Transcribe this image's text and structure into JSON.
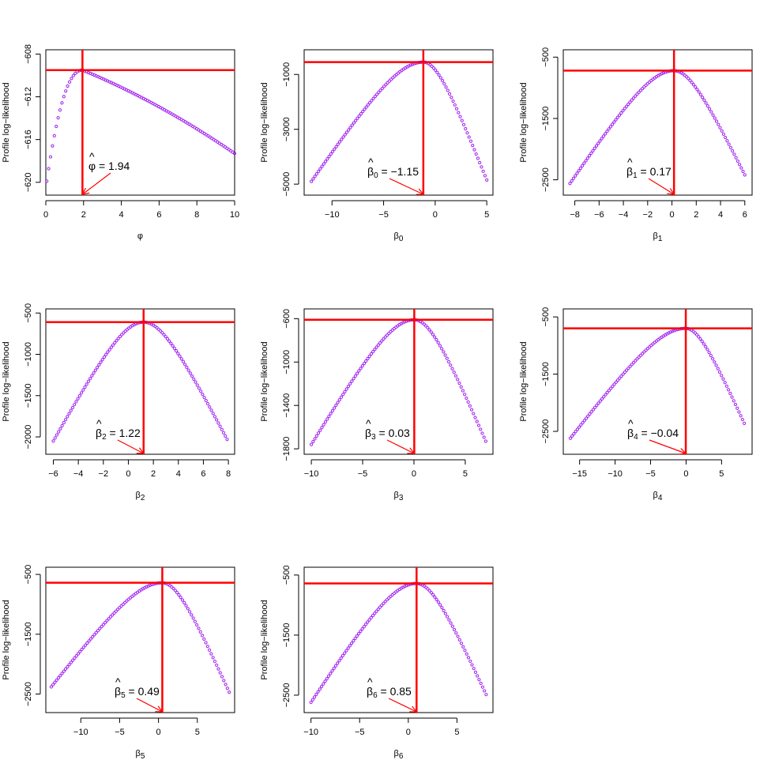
{
  "chart_data": [
    {
      "type": "scatter",
      "param": "phi",
      "xlabel_symbol": "φ",
      "xlabel_sub": "",
      "ylabel": "Profile log−likelihood",
      "xlim": [
        0,
        10
      ],
      "ylim": [
        -621.2,
        -607.6
      ],
      "xticks": [
        0,
        2,
        4,
        6,
        8,
        10
      ],
      "xtick_labels": [
        "0",
        "2",
        "4",
        "6",
        "8",
        "10"
      ],
      "yticks": [
        -620,
        -616,
        -612,
        -608
      ],
      "ytick_labels": [
        "−620",
        "−616",
        "−612",
        "−608"
      ],
      "estimate": 1.94,
      "estimate_label_symbol": "φ",
      "estimate_label_sub": "",
      "estimate_label_value": "= 1.94",
      "max_loglik": -609.5,
      "curve": {
        "kind": "phi",
        "x_start": 0.05,
        "x_end": 10,
        "n": 100,
        "y_end": -617.3,
        "y_start": -619.9
      },
      "line_color": "#ff0000",
      "point_color": "#a020f0"
    },
    {
      "type": "scatter",
      "param": "beta0",
      "xlabel_symbol": "β",
      "xlabel_sub": "0",
      "ylabel": "Profile log−likelihood",
      "xlim": [
        -12.7,
        5.6
      ],
      "ylim": [
        -5400,
        -100
      ],
      "xticks": [
        -10,
        -5,
        0,
        5
      ],
      "xtick_labels": [
        "−10",
        "−5",
        "0",
        "5"
      ],
      "yticks": [
        -5000,
        -3000,
        -1000
      ],
      "ytick_labels": [
        "−5000",
        "−3000",
        "−1000"
      ],
      "estimate": -1.15,
      "estimate_label_symbol": "β",
      "estimate_label_sub": "0",
      "estimate_label_value": "= −1.15",
      "max_loglik": -550,
      "curve": {
        "kind": "quad",
        "x_start": -12,
        "x_end": 5,
        "n": 100,
        "y_start": -4900,
        "y_end": -4850
      },
      "line_color": "#ff0000",
      "point_color": "#a020f0"
    },
    {
      "type": "scatter",
      "param": "beta1",
      "xlabel_symbol": "β",
      "xlabel_sub": "1",
      "ylabel": "Profile log−likelihood",
      "xlim": [
        -8.95,
        6.6
      ],
      "ylim": [
        -2750,
        -380
      ],
      "xticks": [
        -8,
        -6,
        -4,
        -2,
        0,
        2,
        4,
        6
      ],
      "xtick_labels": [
        "−8",
        "−6",
        "−4",
        "−2",
        "0",
        "2",
        "4",
        "6"
      ],
      "yticks": [
        -2500,
        -1500,
        -500
      ],
      "ytick_labels": [
        "−2500",
        "−1500",
        "−500"
      ],
      "estimate": 0.17,
      "estimate_label_symbol": "β",
      "estimate_label_sub": "1",
      "estimate_label_value": "= 0.17",
      "max_loglik": -720,
      "curve": {
        "kind": "quad",
        "x_start": -8.4,
        "x_end": 6,
        "n": 100,
        "y_start": -2560,
        "y_end": -2420
      },
      "line_color": "#ff0000",
      "point_color": "#a020f0"
    },
    {
      "type": "scatter",
      "param": "beta2",
      "xlabel_symbol": "β",
      "xlabel_sub": "2",
      "ylabel": "Profile log−likelihood",
      "xlim": [
        -6.6,
        8.5
      ],
      "ylim": [
        -2210,
        -450
      ],
      "xticks": [
        -6,
        -4,
        -2,
        0,
        2,
        4,
        6,
        8
      ],
      "xtick_labels": [
        "−6",
        "−4",
        "−2",
        "0",
        "2",
        "4",
        "6",
        "8"
      ],
      "yticks": [
        -2000,
        -1500,
        -1000,
        -500
      ],
      "ytick_labels": [
        "−2000",
        "−1500",
        "−1000",
        "−500"
      ],
      "estimate": 1.22,
      "estimate_label_symbol": "β",
      "estimate_label_sub": "2",
      "estimate_label_value": "= 1.22",
      "max_loglik": -610,
      "curve": {
        "kind": "quad",
        "x_start": -6,
        "x_end": 7.9,
        "n": 100,
        "y_start": -2050,
        "y_end": -2030
      },
      "line_color": "#ff0000",
      "point_color": "#a020f0"
    },
    {
      "type": "scatter",
      "param": "beta3",
      "xlabel_symbol": "β",
      "xlabel_sub": "3",
      "ylabel": "Profile log−likelihood",
      "xlim": [
        -10.7,
        7.7
      ],
      "ylim": [
        -1850,
        -510
      ],
      "xticks": [
        -10,
        -5,
        0,
        5
      ],
      "xtick_labels": [
        "−10",
        "−5",
        "0",
        "5"
      ],
      "yticks": [
        -1800,
        -1400,
        -1000,
        -600
      ],
      "ytick_labels": [
        "−1800",
        "−1400",
        "−1000",
        "−600"
      ],
      "estimate": 0.03,
      "estimate_label_symbol": "β",
      "estimate_label_sub": "3",
      "estimate_label_value": "= 0.03",
      "max_loglik": -610,
      "curve": {
        "kind": "quad",
        "x_start": -10,
        "x_end": 7,
        "n": 100,
        "y_start": -1760,
        "y_end": -1730
      },
      "line_color": "#ff0000",
      "point_color": "#a020f0"
    },
    {
      "type": "scatter",
      "param": "beta4",
      "xlabel_symbol": "β",
      "xlabel_sub": "4",
      "ylabel": "Profile log−likelihood",
      "xlim": [
        -17.3,
        9.3
      ],
      "ylim": [
        -2900,
        -360
      ],
      "xticks": [
        -15,
        -10,
        -5,
        0,
        5
      ],
      "xtick_labels": [
        "−15",
        "−10",
        "−5",
        "0",
        "5"
      ],
      "yticks": [
        -2500,
        -1500,
        -500
      ],
      "ytick_labels": [
        "−2500",
        "−1500",
        "−500"
      ],
      "estimate": -0.04,
      "estimate_label_symbol": "β",
      "estimate_label_sub": "4",
      "estimate_label_value": "= −0.04",
      "max_loglik": -700,
      "curve": {
        "kind": "quad",
        "x_start": -16.3,
        "x_end": 8.2,
        "n": 100,
        "y_start": -2620,
        "y_end": -2360
      },
      "line_color": "#ff0000",
      "point_color": "#a020f0"
    },
    {
      "type": "scatter",
      "param": "beta5",
      "xlabel_symbol": "β",
      "xlabel_sub": "5",
      "ylabel": "Profile log−likelihood",
      "xlim": [
        -14.5,
        9.8
      ],
      "ylim": [
        -2810,
        -380
      ],
      "xticks": [
        -10,
        -5,
        0,
        5
      ],
      "xtick_labels": [
        "−10",
        "−5",
        "0",
        "5"
      ],
      "yticks": [
        -2500,
        -1500,
        -500
      ],
      "ytick_labels": [
        "−2500",
        "−1500",
        "−500"
      ],
      "estimate": 0.49,
      "estimate_label_symbol": "β",
      "estimate_label_sub": "5",
      "estimate_label_value": "= 0.49",
      "max_loglik": -640,
      "curve": {
        "kind": "quad",
        "x_start": -13.8,
        "x_end": 9.1,
        "n": 100,
        "y_start": -2380,
        "y_end": -2470
      },
      "line_color": "#ff0000",
      "point_color": "#a020f0"
    },
    {
      "type": "scatter",
      "param": "beta6",
      "xlabel_symbol": "β",
      "xlabel_sub": "6",
      "ylabel": "Profile log−likelihood",
      "xlim": [
        -10.7,
        8.7
      ],
      "ylim": [
        -2790,
        -370
      ],
      "xticks": [
        -10,
        -5,
        0,
        5
      ],
      "xtick_labels": [
        "−10",
        "−5",
        "0",
        "5"
      ],
      "yticks": [
        -2500,
        -1500,
        -500
      ],
      "ytick_labels": [
        "−2500",
        "−1500",
        "−500"
      ],
      "estimate": 0.85,
      "estimate_label_symbol": "β",
      "estimate_label_sub": "6",
      "estimate_label_value": "= 0.85",
      "max_loglik": -640,
      "curve": {
        "kind": "quad",
        "x_start": -10,
        "x_end": 8,
        "n": 100,
        "y_start": -2620,
        "y_end": -2490
      },
      "line_color": "#ff0000",
      "point_color": "#a020f0"
    }
  ]
}
